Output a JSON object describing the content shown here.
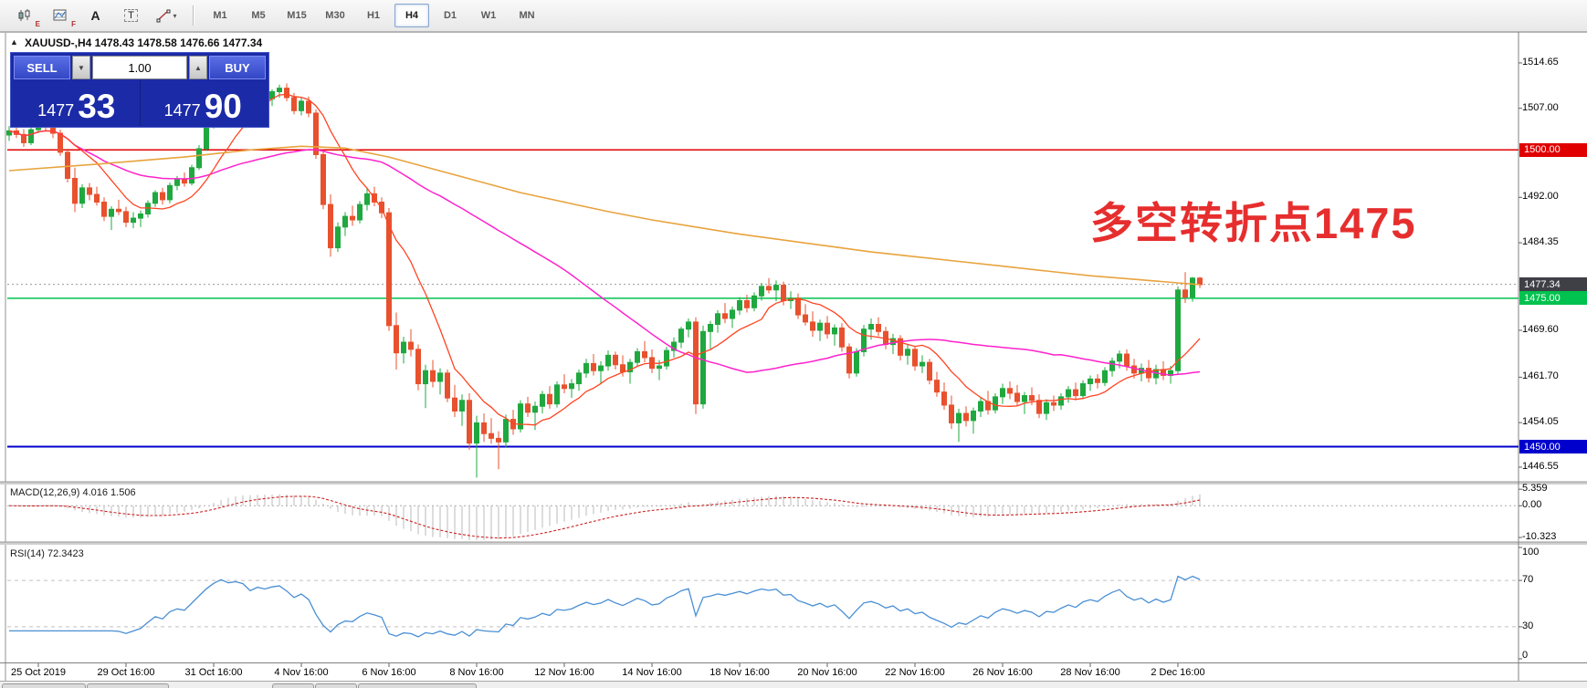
{
  "toolbar": {
    "icon_badges": [
      "E",
      "F"
    ],
    "glyph_a": "A",
    "glyph_t": "T",
    "caret": "▾",
    "timeframes": [
      {
        "label": "M1"
      },
      {
        "label": "M5"
      },
      {
        "label": "M15"
      },
      {
        "label": "M30"
      },
      {
        "label": "H1"
      },
      {
        "label": "H4",
        "active": true
      },
      {
        "label": "D1"
      },
      {
        "label": "W1"
      },
      {
        "label": "MN"
      }
    ]
  },
  "ui": {
    "collapse_icon": "▲"
  },
  "trade_panel": {
    "sell_label": "SELL",
    "buy_label": "BUY",
    "volume": "1.00",
    "spinner_down": "▼",
    "spinner_up": "▲",
    "sell_price": "1477",
    "sell_pips": "33",
    "buy_price": "1477",
    "buy_pips": "90"
  },
  "annotation": {
    "text": "多空转折点1475",
    "color": "#e62e2e"
  },
  "chart_data": {
    "type": "candlestick",
    "symbol": "XAUUSD-",
    "timeframe": "H4",
    "title": "XAUUSD-,H4  1478.43 1478.58 1476.66 1477.34",
    "current_ohlc": {
      "open": 1478.43,
      "high": 1478.58,
      "low": 1476.66,
      "close": 1477.34
    },
    "ylim": [
      1444,
      1520
    ],
    "colors": {
      "up": "#1fa83f",
      "down": "#e8512e",
      "bid_line": "#999999"
    },
    "price_tick_labels": [
      "1514.65",
      "1507.00",
      "1492.00",
      "1484.35",
      "1469.60",
      "1461.70",
      "1454.05",
      "1446.55"
    ],
    "price_tick_values": [
      1514.65,
      1507.0,
      1492.0,
      1484.35,
      1469.6,
      1461.7,
      1454.05,
      1446.55
    ],
    "hlines": [
      {
        "value": 1500.0,
        "label": "1500.00",
        "color": "#e00000"
      },
      {
        "value": 1475.0,
        "label": "1475.00",
        "color": "#00c24e"
      },
      {
        "value": 1450.0,
        "label": "1450.00",
        "color": "#0000cc"
      }
    ],
    "bid_line": {
      "value": 1477.34,
      "label": "1477.34",
      "bg": "#3f3f46"
    },
    "time_axis": {
      "labels": [
        "25 Oct 2019",
        "29 Oct 16:00",
        "31 Oct 16:00",
        "4 Nov 16:00",
        "6 Nov 16:00",
        "8 Nov 16:00",
        "12 Nov 16:00",
        "14 Nov 16:00",
        "18 Nov 16:00",
        "20 Nov 16:00",
        "22 Nov 16:00",
        "26 Nov 16:00",
        "28 Nov 16:00",
        "2 Dec 16:00"
      ],
      "indices": [
        4,
        16,
        28,
        40,
        52,
        64,
        76,
        88,
        100,
        112,
        124,
        136,
        148,
        160
      ]
    },
    "overlays": {
      "ma_fast": {
        "type": "sma",
        "period": 10,
        "color": "#ff4422"
      },
      "ma_mid": {
        "type": "sma",
        "period": 50,
        "color": "#ff22cc"
      },
      "ma_slow": {
        "type": "points",
        "color": "#e8a33d",
        "points": [
          [
            0,
            1496.5
          ],
          [
            12,
            1497.6
          ],
          [
            24,
            1498.8
          ],
          [
            33,
            1500.0
          ],
          [
            40,
            1500.6
          ],
          [
            46,
            1500.3
          ],
          [
            52,
            1498.8
          ],
          [
            58,
            1496.8
          ],
          [
            64,
            1494.8
          ],
          [
            70,
            1492.8
          ],
          [
            76,
            1491.2
          ],
          [
            82,
            1489.6
          ],
          [
            88,
            1488.2
          ],
          [
            94,
            1487.0
          ],
          [
            100,
            1485.8
          ],
          [
            106,
            1484.8
          ],
          [
            112,
            1483.8
          ],
          [
            118,
            1482.8
          ],
          [
            124,
            1482.0
          ],
          [
            130,
            1481.2
          ],
          [
            136,
            1480.4
          ],
          [
            142,
            1479.6
          ],
          [
            148,
            1478.8
          ],
          [
            154,
            1478.2
          ],
          [
            160,
            1477.6
          ],
          [
            163,
            1477.3
          ]
        ]
      }
    },
    "macd": {
      "label": "MACD(12,26,9) 4.016 1.506",
      "params": [
        12,
        26,
        9
      ],
      "value": 4.016,
      "signal": 1.506,
      "axis_labels": [
        "5.359",
        "0.00",
        "-10.323"
      ],
      "axis_values": [
        5.359,
        0,
        -10.323
      ],
      "range": [
        -11.2,
        6.0
      ],
      "colors": {
        "hist": "#bbbbbb",
        "signal": "#cc2222",
        "zero": "#aaaaaa"
      }
    },
    "rsi": {
      "label": "RSI(14) 72.3423",
      "period": 14,
      "value": 72.3423,
      "axis_labels": [
        "100",
        "70",
        "30",
        "0"
      ],
      "axis_values": [
        100,
        70,
        30,
        0
      ],
      "levels": [
        70,
        30
      ],
      "color": "#4a8fd4",
      "level_color": "#c0c0c0"
    },
    "candles": [
      [
        1502.5,
        1504.0,
        1501.5,
        1503.2
      ],
      [
        1503.2,
        1504.5,
        1502.0,
        1502.6
      ],
      [
        1502.6,
        1503.5,
        1500.5,
        1501.2
      ],
      [
        1501.2,
        1503.8,
        1500.8,
        1503.4
      ],
      [
        1503.4,
        1505.5,
        1502.8,
        1504.8
      ],
      [
        1504.8,
        1505.3,
        1503.2,
        1504.0
      ],
      [
        1504.0,
        1505.0,
        1502.0,
        1502.8
      ],
      [
        1502.8,
        1503.4,
        1499.0,
        1499.6
      ],
      [
        1499.6,
        1500.2,
        1494.5,
        1495.2
      ],
      [
        1495.2,
        1497.0,
        1489.5,
        1491.0
      ],
      [
        1491.0,
        1494.2,
        1490.2,
        1493.6
      ],
      [
        1493.6,
        1494.4,
        1491.5,
        1492.5
      ],
      [
        1492.5,
        1493.8,
        1490.6,
        1491.2
      ],
      [
        1491.2,
        1492.0,
        1488.0,
        1488.8
      ],
      [
        1488.8,
        1490.5,
        1486.5,
        1490.0
      ],
      [
        1490.0,
        1491.6,
        1489.0,
        1489.6
      ],
      [
        1489.6,
        1490.4,
        1487.0,
        1487.8
      ],
      [
        1487.8,
        1489.5,
        1486.8,
        1488.5
      ],
      [
        1488.5,
        1489.8,
        1487.0,
        1489.2
      ],
      [
        1489.2,
        1491.5,
        1488.6,
        1491.0
      ],
      [
        1491.0,
        1493.2,
        1490.4,
        1492.8
      ],
      [
        1492.8,
        1493.6,
        1490.8,
        1491.6
      ],
      [
        1491.6,
        1494.5,
        1491.0,
        1494.0
      ],
      [
        1494.0,
        1495.6,
        1493.2,
        1495.0
      ],
      [
        1495.0,
        1496.2,
        1493.8,
        1494.4
      ],
      [
        1494.4,
        1497.5,
        1494.0,
        1497.0
      ],
      [
        1497.0,
        1500.8,
        1496.6,
        1500.2
      ],
      [
        1500.2,
        1504.5,
        1499.8,
        1504.0
      ],
      [
        1504.0,
        1508.2,
        1503.6,
        1507.6
      ],
      [
        1507.6,
        1511.0,
        1506.8,
        1510.5
      ],
      [
        1510.5,
        1511.5,
        1508.8,
        1509.4
      ],
      [
        1509.4,
        1510.8,
        1507.6,
        1510.2
      ],
      [
        1510.2,
        1511.2,
        1509.0,
        1509.6
      ],
      [
        1509.6,
        1510.4,
        1506.5,
        1507.2
      ],
      [
        1507.2,
        1509.8,
        1506.8,
        1509.2
      ],
      [
        1509.2,
        1510.6,
        1508.0,
        1508.6
      ],
      [
        1508.6,
        1510.2,
        1507.4,
        1509.8
      ],
      [
        1509.8,
        1511.0,
        1508.8,
        1510.4
      ],
      [
        1510.4,
        1511.2,
        1508.2,
        1508.8
      ],
      [
        1508.8,
        1509.6,
        1506.0,
        1506.6
      ],
      [
        1506.6,
        1508.8,
        1505.8,
        1508.2
      ],
      [
        1508.2,
        1509.0,
        1505.5,
        1506.2
      ],
      [
        1506.2,
        1506.8,
        1498.5,
        1499.2
      ],
      [
        1499.2,
        1500.0,
        1490.0,
        1490.8
      ],
      [
        1490.8,
        1492.5,
        1482.0,
        1483.5
      ],
      [
        1483.5,
        1487.8,
        1482.8,
        1487.0
      ],
      [
        1487.0,
        1489.5,
        1485.5,
        1488.8
      ],
      [
        1488.8,
        1490.6,
        1487.2,
        1488.2
      ],
      [
        1488.2,
        1491.4,
        1487.6,
        1490.8
      ],
      [
        1490.8,
        1493.5,
        1489.8,
        1492.6
      ],
      [
        1492.6,
        1493.8,
        1490.5,
        1491.2
      ],
      [
        1491.2,
        1492.0,
        1488.5,
        1489.4
      ],
      [
        1489.4,
        1490.2,
        1469.5,
        1470.4
      ],
      [
        1470.4,
        1472.6,
        1463.0,
        1465.8
      ],
      [
        1465.8,
        1468.5,
        1464.0,
        1467.6
      ],
      [
        1467.6,
        1469.8,
        1465.2,
        1466.4
      ],
      [
        1466.4,
        1467.2,
        1459.5,
        1460.6
      ],
      [
        1460.6,
        1463.8,
        1456.5,
        1462.8
      ],
      [
        1462.8,
        1464.6,
        1460.0,
        1461.0
      ],
      [
        1461.0,
        1463.2,
        1458.8,
        1462.4
      ],
      [
        1462.4,
        1463.0,
        1457.5,
        1458.2
      ],
      [
        1458.2,
        1460.4,
        1455.0,
        1456.0
      ],
      [
        1456.0,
        1458.8,
        1453.5,
        1457.8
      ],
      [
        1457.8,
        1459.0,
        1449.5,
        1450.6
      ],
      [
        1450.6,
        1455.2,
        1444.8,
        1454.0
      ],
      [
        1454.0,
        1455.6,
        1450.8,
        1452.2
      ],
      [
        1452.2,
        1454.8,
        1450.5,
        1451.4
      ],
      [
        1451.4,
        1452.6,
        1446.2,
        1450.8
      ],
      [
        1450.8,
        1455.4,
        1449.8,
        1454.6
      ],
      [
        1454.6,
        1456.2,
        1452.0,
        1453.0
      ],
      [
        1453.0,
        1457.8,
        1452.4,
        1457.2
      ],
      [
        1457.2,
        1458.4,
        1455.0,
        1455.8
      ],
      [
        1455.8,
        1457.6,
        1452.8,
        1456.8
      ],
      [
        1456.8,
        1459.4,
        1455.6,
        1458.8
      ],
      [
        1458.8,
        1460.2,
        1456.4,
        1457.2
      ],
      [
        1457.2,
        1461.0,
        1456.6,
        1460.4
      ],
      [
        1460.4,
        1462.2,
        1459.0,
        1459.8
      ],
      [
        1459.8,
        1461.4,
        1458.2,
        1460.6
      ],
      [
        1460.6,
        1463.0,
        1459.4,
        1462.4
      ],
      [
        1462.4,
        1464.8,
        1461.6,
        1464.0
      ],
      [
        1464.0,
        1465.6,
        1462.0,
        1462.8
      ],
      [
        1462.8,
        1464.4,
        1460.5,
        1463.6
      ],
      [
        1463.6,
        1466.2,
        1462.8,
        1465.4
      ],
      [
        1465.4,
        1466.0,
        1463.0,
        1463.8
      ],
      [
        1463.8,
        1465.4,
        1461.8,
        1462.6
      ],
      [
        1462.6,
        1464.8,
        1460.6,
        1464.2
      ],
      [
        1464.2,
        1466.6,
        1463.4,
        1466.0
      ],
      [
        1466.0,
        1467.8,
        1464.2,
        1465.0
      ],
      [
        1465.0,
        1466.4,
        1462.4,
        1463.2
      ],
      [
        1463.2,
        1464.6,
        1461.2,
        1463.6
      ],
      [
        1463.6,
        1466.8,
        1463.0,
        1466.2
      ],
      [
        1466.2,
        1468.4,
        1465.0,
        1467.6
      ],
      [
        1467.6,
        1470.2,
        1466.6,
        1469.8
      ],
      [
        1469.8,
        1471.6,
        1468.4,
        1471.0
      ],
      [
        1471.0,
        1471.8,
        1455.5,
        1457.2
      ],
      [
        1457.2,
        1470.4,
        1456.4,
        1469.4
      ],
      [
        1469.4,
        1471.2,
        1466.5,
        1470.6
      ],
      [
        1470.6,
        1473.0,
        1469.2,
        1472.4
      ],
      [
        1472.4,
        1474.2,
        1470.8,
        1471.6
      ],
      [
        1471.6,
        1473.6,
        1470.0,
        1473.0
      ],
      [
        1473.0,
        1475.2,
        1472.2,
        1474.6
      ],
      [
        1474.6,
        1475.6,
        1472.6,
        1473.4
      ],
      [
        1473.4,
        1476.0,
        1472.8,
        1475.4
      ],
      [
        1475.4,
        1477.6,
        1474.6,
        1477.0
      ],
      [
        1477.0,
        1478.4,
        1475.8,
        1476.4
      ],
      [
        1476.4,
        1478.0,
        1474.5,
        1477.2
      ],
      [
        1477.2,
        1477.8,
        1473.8,
        1474.6
      ],
      [
        1474.6,
        1476.2,
        1473.2,
        1475.0
      ],
      [
        1475.0,
        1475.8,
        1471.5,
        1472.2
      ],
      [
        1472.2,
        1474.0,
        1470.4,
        1471.0
      ],
      [
        1471.0,
        1472.8,
        1468.5,
        1469.6
      ],
      [
        1469.6,
        1471.4,
        1467.8,
        1470.8
      ],
      [
        1470.8,
        1472.0,
        1468.2,
        1469.0
      ],
      [
        1469.0,
        1470.6,
        1467.0,
        1470.0
      ],
      [
        1470.0,
        1470.8,
        1466.0,
        1466.8
      ],
      [
        1466.8,
        1467.4,
        1461.5,
        1462.4
      ],
      [
        1462.4,
        1466.6,
        1461.8,
        1466.0
      ],
      [
        1466.0,
        1470.5,
        1465.2,
        1469.8
      ],
      [
        1469.8,
        1471.6,
        1468.0,
        1470.6
      ],
      [
        1470.6,
        1471.8,
        1468.6,
        1469.4
      ],
      [
        1469.4,
        1470.2,
        1466.4,
        1467.2
      ],
      [
        1467.2,
        1469.0,
        1465.6,
        1468.2
      ],
      [
        1468.2,
        1468.8,
        1464.5,
        1465.4
      ],
      [
        1465.4,
        1467.2,
        1463.8,
        1466.4
      ],
      [
        1466.4,
        1467.0,
        1462.8,
        1463.6
      ],
      [
        1463.6,
        1465.4,
        1462.4,
        1464.2
      ],
      [
        1464.2,
        1464.8,
        1460.5,
        1461.2
      ],
      [
        1461.2,
        1462.6,
        1458.4,
        1459.2
      ],
      [
        1459.2,
        1460.8,
        1456.2,
        1457.0
      ],
      [
        1457.0,
        1458.6,
        1453.0,
        1454.0
      ],
      [
        1454.0,
        1456.4,
        1450.8,
        1455.6
      ],
      [
        1455.6,
        1456.8,
        1453.4,
        1454.4
      ],
      [
        1454.4,
        1456.6,
        1452.2,
        1456.0
      ],
      [
        1456.0,
        1458.2,
        1455.0,
        1457.6
      ],
      [
        1457.6,
        1459.4,
        1455.4,
        1456.2
      ],
      [
        1456.2,
        1459.0,
        1455.6,
        1458.4
      ],
      [
        1458.4,
        1460.6,
        1457.2,
        1459.8
      ],
      [
        1459.8,
        1461.0,
        1458.0,
        1459.0
      ],
      [
        1459.0,
        1460.4,
        1456.8,
        1457.6
      ],
      [
        1457.6,
        1459.2,
        1455.5,
        1458.6
      ],
      [
        1458.6,
        1460.0,
        1457.0,
        1457.8
      ],
      [
        1457.8,
        1458.8,
        1454.8,
        1455.6
      ],
      [
        1455.6,
        1458.0,
        1454.5,
        1457.4
      ],
      [
        1457.4,
        1458.6,
        1456.0,
        1457.0
      ],
      [
        1457.0,
        1459.0,
        1456.2,
        1458.4
      ],
      [
        1458.4,
        1460.2,
        1457.4,
        1459.6
      ],
      [
        1459.6,
        1460.8,
        1457.8,
        1458.6
      ],
      [
        1458.6,
        1461.2,
        1458.0,
        1460.6
      ],
      [
        1460.6,
        1462.0,
        1459.4,
        1461.4
      ],
      [
        1461.4,
        1462.2,
        1459.8,
        1460.8
      ],
      [
        1460.8,
        1463.4,
        1460.2,
        1462.8
      ],
      [
        1462.8,
        1465.0,
        1461.8,
        1464.4
      ],
      [
        1464.4,
        1466.2,
        1463.2,
        1465.6
      ],
      [
        1465.6,
        1466.4,
        1462.8,
        1463.6
      ],
      [
        1463.6,
        1464.8,
        1461.5,
        1462.4
      ],
      [
        1462.4,
        1464.0,
        1461.0,
        1463.2
      ],
      [
        1463.2,
        1464.6,
        1460.8,
        1461.6
      ],
      [
        1461.6,
        1463.8,
        1460.5,
        1463.0
      ],
      [
        1463.0,
        1464.4,
        1461.2,
        1462.0
      ],
      [
        1462.0,
        1463.6,
        1460.6,
        1462.8
      ],
      [
        1462.8,
        1477.0,
        1462.2,
        1476.4
      ],
      [
        1476.4,
        1479.4,
        1474.2,
        1475.2
      ],
      [
        1475.2,
        1478.6,
        1474.4,
        1478.4
      ],
      [
        1478.4,
        1478.6,
        1476.7,
        1477.3
      ]
    ]
  },
  "tabs": {
    "count": 5
  }
}
